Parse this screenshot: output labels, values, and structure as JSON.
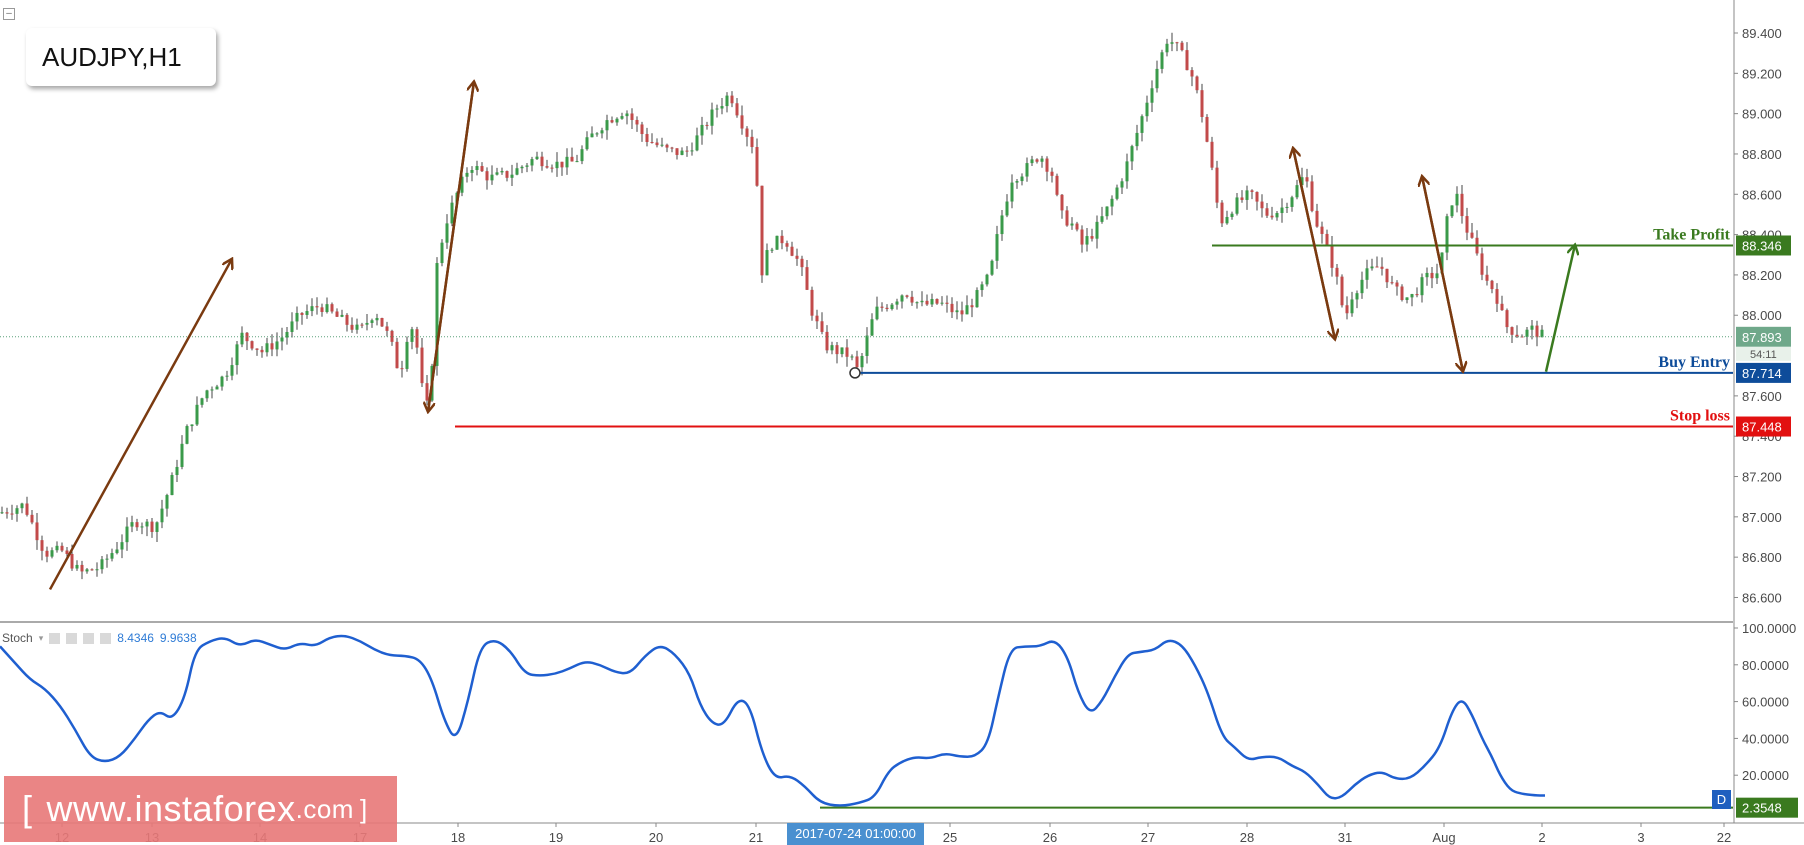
{
  "symbol": "AUDJPY,H1",
  "collapse_icon": "minus-box-icon",
  "stoch": {
    "label": "Stoch",
    "value_k": "8.4346",
    "value_d": "9.9638",
    "marked_value": "2.3548",
    "y_ticks": [
      "100.0000",
      "80.0000",
      "60.0000",
      "40.0000",
      "20.0000"
    ]
  },
  "watermark": {
    "open": "[",
    "text": "www.instaforex",
    "suffix": ".com",
    "close": "]"
  },
  "crosshair_date": "2017-07-24 01:00:00",
  "d_badge": "D",
  "chart_data": {
    "type": "candlestick",
    "title": "AUDJPY,H1",
    "x_ticks": [
      "12",
      "13",
      "14",
      "17",
      "18",
      "19",
      "20",
      "21",
      "2017-07-24 01:00:00",
      "25",
      "26",
      "27",
      "28",
      "31",
      "Aug",
      "2",
      "3",
      "22"
    ],
    "y_ticks": [
      "89.400",
      "89.200",
      "89.000",
      "88.800",
      "88.600",
      "88.400",
      "88.200",
      "88.000",
      "87.600",
      "87.400",
      "87.200",
      "87.000",
      "86.800",
      "86.600"
    ],
    "ylim": [
      86.5,
      89.5
    ],
    "levels": [
      {
        "name": "Take Profit",
        "value": 88.346,
        "label": "88.346",
        "color": "#3a7a1f"
      },
      {
        "name": "Buy Entry",
        "value": 87.714,
        "label": "87.714",
        "color": "#0e4c9a"
      },
      {
        "name": "Stop loss",
        "value": 87.448,
        "label": "87.448",
        "color": "#e21010"
      }
    ],
    "current_price": {
      "value": 87.893,
      "label": "87.893",
      "countdown": "54:11"
    },
    "price_path": [
      [
        0,
        87.02
      ],
      [
        24,
        87.06
      ],
      [
        45,
        86.82
      ],
      [
        62,
        86.83
      ],
      [
        80,
        86.72
      ],
      [
        100,
        86.75
      ],
      [
        118,
        86.86
      ],
      [
        135,
        86.98
      ],
      [
        155,
        86.95
      ],
      [
        170,
        87.15
      ],
      [
        186,
        87.42
      ],
      [
        205,
        87.62
      ],
      [
        225,
        87.7
      ],
      [
        242,
        87.9
      ],
      [
        262,
        87.82
      ],
      [
        280,
        87.88
      ],
      [
        300,
        88.0
      ],
      [
        320,
        88.05
      ],
      [
        340,
        87.98
      ],
      [
        360,
        87.92
      ],
      [
        375,
        88.02
      ],
      [
        390,
        87.88
      ],
      [
        400,
        87.7
      ],
      [
        410,
        87.98
      ],
      [
        418,
        87.82
      ],
      [
        424,
        87.55
      ],
      [
        430,
        87.55
      ],
      [
        436,
        88.22
      ],
      [
        445,
        88.45
      ],
      [
        455,
        88.58
      ],
      [
        470,
        88.75
      ],
      [
        490,
        88.68
      ],
      [
        510,
        88.7
      ],
      [
        535,
        88.78
      ],
      [
        555,
        88.75
      ],
      [
        575,
        88.76
      ],
      [
        590,
        88.88
      ],
      [
        605,
        88.96
      ],
      [
        625,
        89.02
      ],
      [
        645,
        88.88
      ],
      [
        665,
        88.82
      ],
      [
        685,
        88.8
      ],
      [
        700,
        88.9
      ],
      [
        715,
        89.02
      ],
      [
        730,
        89.1
      ],
      [
        745,
        88.92
      ],
      [
        755,
        88.82
      ],
      [
        762,
        88.22
      ],
      [
        770,
        88.35
      ],
      [
        785,
        88.38
      ],
      [
        800,
        88.25
      ],
      [
        812,
        88.02
      ],
      [
        825,
        87.85
      ],
      [
        838,
        87.82
      ],
      [
        850,
        87.8
      ],
      [
        858,
        87.72
      ],
      [
        865,
        87.85
      ],
      [
        875,
        88.02
      ],
      [
        890,
        88.06
      ],
      [
        905,
        88.12
      ],
      [
        920,
        88.05
      ],
      [
        940,
        88.06
      ],
      [
        960,
        88.0
      ],
      [
        975,
        88.08
      ],
      [
        990,
        88.2
      ],
      [
        1000,
        88.46
      ],
      [
        1012,
        88.68
      ],
      [
        1025,
        88.72
      ],
      [
        1040,
        88.8
      ],
      [
        1052,
        88.7
      ],
      [
        1060,
        88.5
      ],
      [
        1072,
        88.45
      ],
      [
        1082,
        88.35
      ],
      [
        1095,
        88.42
      ],
      [
        1110,
        88.55
      ],
      [
        1125,
        88.72
      ],
      [
        1140,
        88.95
      ],
      [
        1155,
        89.2
      ],
      [
        1168,
        89.38
      ],
      [
        1178,
        89.32
      ],
      [
        1190,
        89.22
      ],
      [
        1200,
        89.05
      ],
      [
        1210,
        88.78
      ],
      [
        1220,
        88.46
      ],
      [
        1235,
        88.55
      ],
      [
        1250,
        88.6
      ],
      [
        1265,
        88.5
      ],
      [
        1280,
        88.52
      ],
      [
        1295,
        88.62
      ],
      [
        1305,
        88.7
      ],
      [
        1315,
        88.48
      ],
      [
        1325,
        88.35
      ],
      [
        1335,
        88.22
      ],
      [
        1345,
        87.98
      ],
      [
        1352,
        88.1
      ],
      [
        1365,
        88.2
      ],
      [
        1380,
        88.25
      ],
      [
        1395,
        88.12
      ],
      [
        1410,
        88.08
      ],
      [
        1425,
        88.18
      ],
      [
        1440,
        88.22
      ],
      [
        1448,
        88.5
      ],
      [
        1455,
        88.62
      ],
      [
        1465,
        88.45
      ],
      [
        1475,
        88.32
      ],
      [
        1485,
        88.18
      ],
      [
        1495,
        88.12
      ],
      [
        1505,
        87.95
      ],
      [
        1520,
        87.9
      ],
      [
        1532,
        87.93
      ],
      [
        1545,
        87.89
      ]
    ],
    "annotations": [
      {
        "type": "arrow",
        "color": "brown",
        "from": [
          50,
          86.64
        ],
        "to": [
          232,
          88.28
        ]
      },
      {
        "type": "arrow",
        "color": "brown",
        "from": [
          428,
          87.52
        ],
        "to": [
          474,
          89.16
        ]
      },
      {
        "type": "arrow",
        "color": "brown",
        "from": [
          474,
          89.16
        ],
        "to": [
          428,
          87.52
        ]
      },
      {
        "type": "arrow",
        "color": "brown",
        "from": [
          1293,
          88.83
        ],
        "to": [
          1335,
          87.88
        ]
      },
      {
        "type": "arrow",
        "color": "brown",
        "from": [
          1335,
          87.88
        ],
        "to": [
          1293,
          88.83
        ]
      },
      {
        "type": "arrow",
        "color": "brown",
        "from": [
          1422,
          88.69
        ],
        "to": [
          1463,
          87.72
        ]
      },
      {
        "type": "arrow",
        "color": "brown",
        "from": [
          1463,
          87.72
        ],
        "to": [
          1422,
          88.69
        ]
      },
      {
        "type": "arrow",
        "color": "green",
        "from": [
          1546,
          87.72
        ],
        "to": [
          1575,
          88.35
        ]
      }
    ],
    "stochastic": [
      [
        0,
        90
      ],
      [
        15,
        81
      ],
      [
        30,
        72
      ],
      [
        45,
        67
      ],
      [
        60,
        58
      ],
      [
        75,
        45
      ],
      [
        90,
        30
      ],
      [
        105,
        27
      ],
      [
        120,
        30
      ],
      [
        135,
        40
      ],
      [
        148,
        50
      ],
      [
        160,
        55
      ],
      [
        172,
        50
      ],
      [
        185,
        62
      ],
      [
        195,
        88
      ],
      [
        210,
        93
      ],
      [
        225,
        95
      ],
      [
        240,
        90
      ],
      [
        255,
        94
      ],
      [
        270,
        91
      ],
      [
        285,
        88
      ],
      [
        300,
        92
      ],
      [
        315,
        90
      ],
      [
        330,
        95
      ],
      [
        345,
        96
      ],
      [
        360,
        93
      ],
      [
        375,
        88
      ],
      [
        390,
        85
      ],
      [
        405,
        85
      ],
      [
        420,
        83
      ],
      [
        432,
        72
      ],
      [
        444,
        50
      ],
      [
        456,
        38
      ],
      [
        468,
        60
      ],
      [
        480,
        90
      ],
      [
        495,
        94
      ],
      [
        510,
        88
      ],
      [
        525,
        75
      ],
      [
        540,
        74
      ],
      [
        555,
        75
      ],
      [
        570,
        78
      ],
      [
        585,
        82
      ],
      [
        600,
        80
      ],
      [
        615,
        76
      ],
      [
        630,
        75
      ],
      [
        645,
        85
      ],
      [
        660,
        91
      ],
      [
        675,
        86
      ],
      [
        690,
        75
      ],
      [
        700,
        58
      ],
      [
        712,
        48
      ],
      [
        724,
        47
      ],
      [
        738,
        62
      ],
      [
        750,
        58
      ],
      [
        762,
        32
      ],
      [
        775,
        18
      ],
      [
        790,
        20
      ],
      [
        805,
        14
      ],
      [
        820,
        5
      ],
      [
        840,
        3
      ],
      [
        860,
        5
      ],
      [
        875,
        8
      ],
      [
        888,
        22
      ],
      [
        900,
        27
      ],
      [
        915,
        30
      ],
      [
        930,
        29
      ],
      [
        945,
        32
      ],
      [
        960,
        30
      ],
      [
        975,
        30
      ],
      [
        988,
        37
      ],
      [
        998,
        62
      ],
      [
        1010,
        89
      ],
      [
        1025,
        90
      ],
      [
        1040,
        90
      ],
      [
        1055,
        94
      ],
      [
        1068,
        84
      ],
      [
        1078,
        65
      ],
      [
        1090,
        53
      ],
      [
        1102,
        60
      ],
      [
        1115,
        74
      ],
      [
        1128,
        86
      ],
      [
        1140,
        87
      ],
      [
        1155,
        88
      ],
      [
        1168,
        94
      ],
      [
        1182,
        91
      ],
      [
        1195,
        80
      ],
      [
        1208,
        65
      ],
      [
        1222,
        41
      ],
      [
        1235,
        35
      ],
      [
        1248,
        28
      ],
      [
        1262,
        30
      ],
      [
        1278,
        30
      ],
      [
        1292,
        25
      ],
      [
        1305,
        22
      ],
      [
        1318,
        15
      ],
      [
        1330,
        7
      ],
      [
        1342,
        8
      ],
      [
        1355,
        15
      ],
      [
        1368,
        20
      ],
      [
        1382,
        22
      ],
      [
        1395,
        18
      ],
      [
        1410,
        18
      ],
      [
        1425,
        25
      ],
      [
        1440,
        35
      ],
      [
        1452,
        55
      ],
      [
        1462,
        62
      ],
      [
        1472,
        53
      ],
      [
        1482,
        40
      ],
      [
        1492,
        30
      ],
      [
        1500,
        20
      ],
      [
        1510,
        12
      ],
      [
        1520,
        10
      ],
      [
        1535,
        9
      ],
      [
        1545,
        9
      ]
    ],
    "colors": {
      "up": "#3a9a4a",
      "down": "#c24a4a",
      "wick": "#444444",
      "stoch": "#1f5fd0",
      "arrow_brown": "#7a3a10",
      "arrow_green": "#3a7a1f",
      "current_line": "#5aa07a",
      "current_bg": "#6fa88a"
    }
  }
}
